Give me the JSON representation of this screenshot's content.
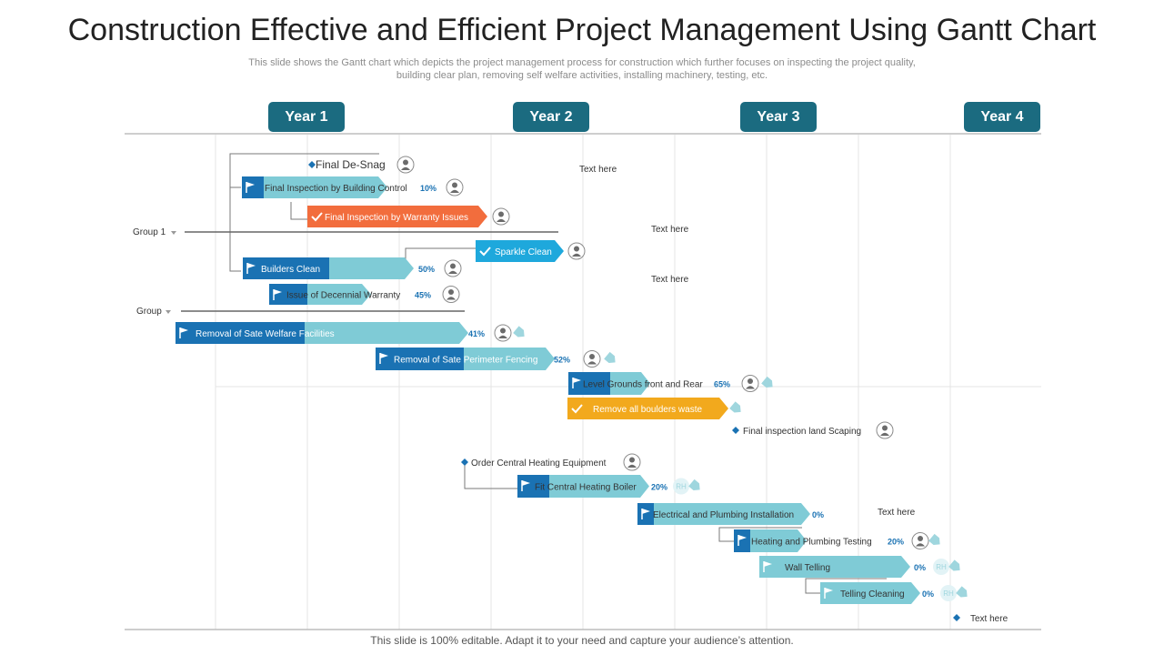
{
  "title": "Construction Effective and Efficient Project Management Using Gantt Chart",
  "subtitle_line1": "This slide shows the Gantt chart which depicts the project management process for construction which further focuses on inspecting the project quality,",
  "subtitle_line2": "building clear plan, removing self welfare activities, installing machinery, testing, etc.",
  "footer": "This slide is 100% editable. Adapt it to your need and capture your audience’s attention.",
  "colors": {
    "accent": "#1b6b80",
    "bar_light": "#7fcbd6",
    "bar_dark": "#1a72b3",
    "orange": "#f26d3d",
    "sky": "#1ea8dc",
    "amber": "#f2a91d",
    "tag": "#9fd6de",
    "text_blue": "#1a72b3"
  },
  "chart_data": {
    "type": "gantt",
    "years": [
      "Year 1",
      "Year 2",
      "Year 3",
      "Year 4"
    ],
    "groups": [
      {
        "label": "Group 1"
      },
      {
        "label": "Group"
      }
    ],
    "tasks": [
      {
        "name": "Final De-Snag",
        "kind": "milestone"
      },
      {
        "name": "Final Inspection by Building  Control",
        "progress": "10%"
      },
      {
        "name": "Final Inspection by Warranty Issues",
        "kind": "check",
        "color": "orange"
      },
      {
        "name": "Sparkle Clean",
        "kind": "check",
        "color": "sky"
      },
      {
        "name": "Builders Clean",
        "progress": "50%"
      },
      {
        "name": "Issue of Decennial Warranty",
        "progress": "45%"
      },
      {
        "name": "Removal of Sate Welfare Facilities",
        "progress": "41%"
      },
      {
        "name": "Removal of Sate Perimeter  Fencing",
        "progress": "52%"
      },
      {
        "name": "Level Grounds front and Rear",
        "progress": "65%"
      },
      {
        "name": "Remove all boulders waste",
        "kind": "check",
        "color": "amber"
      },
      {
        "name": "Final inspection land Scaping",
        "kind": "milestone"
      },
      {
        "name": "Order Central Heating Equipment",
        "kind": "milestone"
      },
      {
        "name": "Fit Central Heating Boiler",
        "progress": "20%",
        "assignee": "RH"
      },
      {
        "name": "Electrical and Plumbing  Installation",
        "progress": "0%"
      },
      {
        "name": "Heating and Plumbing  Testing",
        "progress": "20%"
      },
      {
        "name": "Wall Telling",
        "progress": "0%",
        "assignee": "RH"
      },
      {
        "name": "Telling Cleaning",
        "progress": "0%",
        "assignee": "RH"
      },
      {
        "name": "Text here",
        "kind": "milestone"
      }
    ],
    "notes": [
      "Text here",
      "Text here",
      "Text here",
      "Text here"
    ]
  }
}
